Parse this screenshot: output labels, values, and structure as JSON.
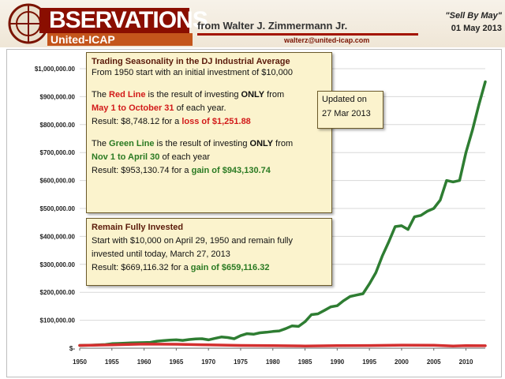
{
  "header": {
    "brand": "BSERVATIONS",
    "brand_sub": "United-ICAP",
    "author": "from Walter J. Zimmermann Jr.",
    "email": "walterz@united-icap.com",
    "title": "\"Sell By May\"",
    "date": "01 May 2013"
  },
  "box1": {
    "title": "Trading Seasonality in the DJ Industrial Average",
    "intro": "From 1950 start with an initial investment of $10,000",
    "red_a": "The ",
    "red_b": "Red Line",
    "red_c": " is the result of investing ",
    "red_d": "ONLY",
    "red_e": " from",
    "red_period": "May 1 to October 31",
    "red_period_tail": " of each year.",
    "red_result_a": "Result: $8,748.12 for a ",
    "red_result_b": "loss of $1,251.88",
    "green_a": "The ",
    "green_b": "Green Line",
    "green_c": " is the result of investing ",
    "green_d": "ONLY",
    "green_e": " from",
    "green_period": "Nov 1 to April 30",
    "green_period_tail": " of each year",
    "green_result_a": "Result: $953,130.74 for a ",
    "green_result_b": "gain of $943,130.74"
  },
  "box2": {
    "line1": "Updated on",
    "line2": "27 Mar 2013"
  },
  "box3": {
    "title": "Remain Fully Invested",
    "line1": "Start with $10,000 on April 29, 1950 and remain fully",
    "line2": "invested until today, March 27, 2013",
    "result_a": "Result: $669,116.32 for a ",
    "result_b": "gain of $659,116.32"
  },
  "chart_data": {
    "type": "line",
    "title": "",
    "xlabel": "",
    "ylabel": "",
    "xlim": [
      1950,
      2013
    ],
    "ylim": [
      0,
      1000000
    ],
    "x_ticks": [
      1950,
      1955,
      1960,
      1965,
      1970,
      1975,
      1980,
      1985,
      1990,
      1995,
      2000,
      2005,
      2010
    ],
    "y_ticks": [
      0,
      100000,
      200000,
      300000,
      400000,
      500000,
      600000,
      700000,
      800000,
      900000,
      1000000
    ],
    "y_tick_labels": [
      "$-",
      "$100,000.00",
      "$200,000.00",
      "$300,000.00",
      "$400,000.00",
      "$500,000.00",
      "$600,000.00",
      "$700,000.00",
      "$800,000.00",
      "$900,000.00",
      "$1,000,000.00"
    ],
    "series": [
      {
        "name": "Nov 1 to April 30",
        "color": "#2e7d32",
        "x": [
          1950,
          1952,
          1954,
          1955,
          1956,
          1958,
          1960,
          1961,
          1962,
          1963,
          1964,
          1965,
          1966,
          1967,
          1968,
          1969,
          1970,
          1971,
          1972,
          1973,
          1974,
          1975,
          1976,
          1977,
          1978,
          1979,
          1980,
          1981,
          1982,
          1983,
          1984,
          1985,
          1986,
          1987,
          1988,
          1989,
          1990,
          1991,
          1992,
          1993,
          1994,
          1995,
          1996,
          1997,
          1998,
          1999,
          2000,
          2001,
          2002,
          2003,
          2004,
          2005,
          2006,
          2007,
          2008,
          2009,
          2010,
          2011,
          2012,
          2013
        ],
        "values": [
          10000,
          11000,
          13000,
          16000,
          17000,
          19000,
          20000,
          21000,
          25000,
          27000,
          29000,
          30000,
          28000,
          31000,
          33000,
          34000,
          30000,
          35000,
          40000,
          38000,
          34000,
          45000,
          52000,
          50000,
          55000,
          57000,
          60000,
          62000,
          70000,
          80000,
          78000,
          95000,
          120000,
          123000,
          135000,
          148000,
          152000,
          170000,
          185000,
          190000,
          195000,
          230000,
          270000,
          330000,
          380000,
          435000,
          438000,
          425000,
          470000,
          475000,
          490000,
          500000,
          530000,
          600000,
          595000,
          600000,
          700000,
          780000,
          870000,
          953000
        ]
      },
      {
        "name": "May 1 to October 31",
        "color": "#d32f2f",
        "x": [
          1950,
          1955,
          1960,
          1965,
          1970,
          1975,
          1980,
          1985,
          1990,
          1995,
          2000,
          2005,
          2008,
          2009,
          2010,
          2013
        ],
        "values": [
          10000,
          12000,
          15000,
          14000,
          12000,
          10000,
          9000,
          8000,
          9000,
          9500,
          11000,
          10500,
          8000,
          8500,
          9000,
          8748
        ]
      }
    ]
  }
}
